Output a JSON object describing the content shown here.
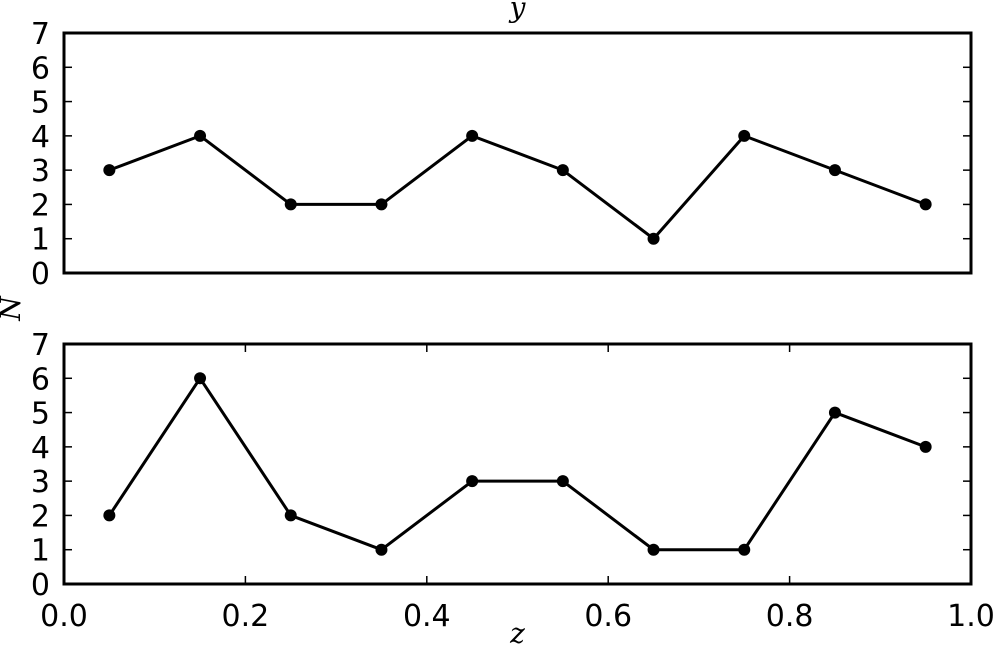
{
  "chart_data": [
    {
      "type": "line",
      "title": "y",
      "x": [
        0.05,
        0.15,
        0.25,
        0.35,
        0.45,
        0.55,
        0.65,
        0.75,
        0.85,
        0.95
      ],
      "values": [
        3,
        4,
        2,
        2,
        4,
        3,
        1,
        4,
        3,
        2
      ],
      "color": "#000000",
      "xlim": [
        0.0,
        1.0
      ],
      "ylim": [
        0,
        7
      ],
      "yticks": [
        0,
        1,
        2,
        3,
        4,
        5,
        6,
        7
      ]
    },
    {
      "type": "line",
      "xlabel": "z",
      "ylabel": "N",
      "x": [
        0.05,
        0.15,
        0.25,
        0.35,
        0.45,
        0.55,
        0.65,
        0.75,
        0.85,
        0.95
      ],
      "values": [
        2,
        6,
        2,
        1,
        3,
        3,
        1,
        1,
        5,
        4
      ],
      "color": "#000000",
      "xlim": [
        0.0,
        1.0
      ],
      "ylim": [
        0,
        7
      ],
      "yticks": [
        0,
        1,
        2,
        3,
        4,
        5,
        6,
        7
      ],
      "xticks": [
        {
          "value": 0.0,
          "label": "0.0"
        },
        {
          "value": 0.2,
          "label": "0.2"
        },
        {
          "value": 0.4,
          "label": "0.4"
        },
        {
          "value": 0.6,
          "label": "0.6"
        },
        {
          "value": 0.8,
          "label": "0.8"
        },
        {
          "value": 1.0,
          "label": "1.0"
        }
      ]
    }
  ]
}
